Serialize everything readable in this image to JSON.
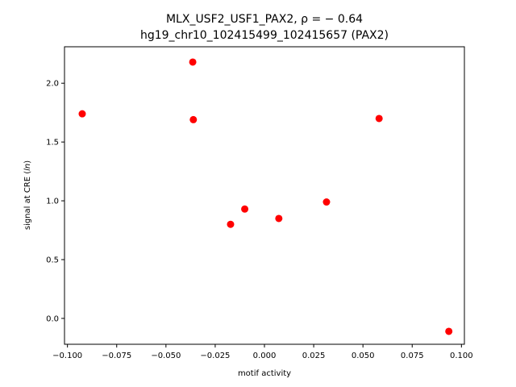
{
  "chart_data": {
    "type": "scatter",
    "title_line1": "MLX_USF2_USF1_PAX2, ρ = − 0.64",
    "title_line2": "hg19_chr10_102415499_102415657 (PAX2)",
    "xlabel": "motif activity",
    "ylabel": "signal at CRE (ln)",
    "xlim": [
      -0.1015,
      0.1015
    ],
    "ylim": [
      -0.22,
      2.31
    ],
    "x_ticks": [
      -0.1,
      -0.075,
      -0.05,
      -0.025,
      0.0,
      0.025,
      0.05,
      0.075,
      0.1
    ],
    "x_tick_labels": [
      "−0.100",
      "−0.075",
      "−0.050",
      "−0.025",
      "0.000",
      "0.025",
      "0.050",
      "0.075",
      "0.100"
    ],
    "y_ticks": [
      0.0,
      0.5,
      1.0,
      1.5,
      2.0
    ],
    "y_tick_labels": [
      "0.0",
      "0.5",
      "1.0",
      "1.5",
      "2.0"
    ],
    "grid": false,
    "marker_color": "#ff0000",
    "series": [
      {
        "points": [
          {
            "x": -0.0925,
            "y": 1.74
          },
          {
            "x": -0.0364,
            "y": 2.18
          },
          {
            "x": -0.0361,
            "y": 1.69
          },
          {
            "x": -0.0172,
            "y": 0.8
          },
          {
            "x": -0.01,
            "y": 0.93
          },
          {
            "x": 0.0073,
            "y": 0.85
          },
          {
            "x": 0.0315,
            "y": 0.99
          },
          {
            "x": 0.0582,
            "y": 1.7
          },
          {
            "x": 0.0936,
            "y": -0.11
          }
        ]
      }
    ]
  }
}
